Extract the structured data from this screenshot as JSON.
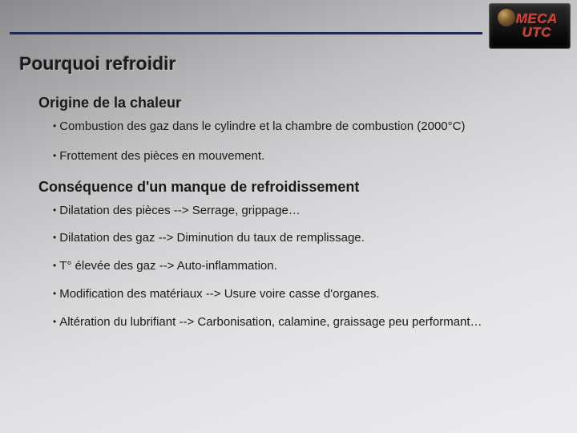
{
  "logo": {
    "line1": "MECA",
    "line2": "UTC"
  },
  "title": "Pourquoi refroidir",
  "section1": {
    "heading": "Origine de la chaleur",
    "bullets": [
      "Combustion des gaz dans le cylindre et la chambre de combustion (2000°C)",
      "Frottement des pièces en mouvement."
    ]
  },
  "section2": {
    "heading": "Conséquence d'un manque de refroidissement",
    "bullets": [
      "Dilatation des pièces --> Serrage, grippage…",
      "Dilatation des gaz --> Diminution du taux de remplissage.",
      "T° élevée des gaz --> Auto-inflammation.",
      "Modification des matériaux --> Usure voire casse d'organes.",
      "Altération du lubrifiant --> Carbonisation, calamine, graissage peu performant…"
    ]
  },
  "colors": {
    "header_line": "#1b2a5a",
    "text": "#1a1a1a",
    "logo_red": "#e33b2f"
  }
}
